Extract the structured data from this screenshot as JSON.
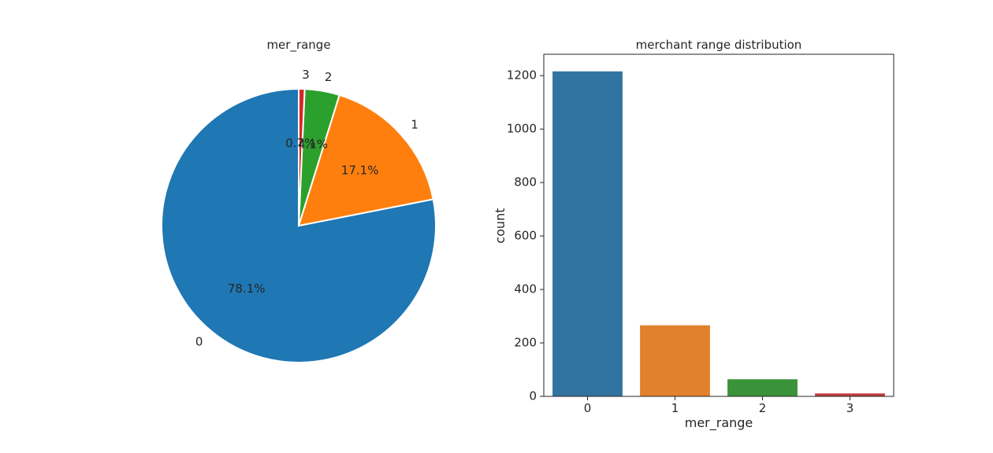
{
  "chart_data": [
    {
      "type": "pie",
      "title": "mer_range",
      "labels": [
        "0",
        "1",
        "2",
        "3"
      ],
      "values": [
        78.1,
        17.1,
        4.1,
        0.7
      ],
      "autopct": [
        "78.1%",
        "17.1%",
        "4.1%",
        "0.7%"
      ],
      "colors": [
        "#1f77b4",
        "#ff7f0e",
        "#2ca02c",
        "#d62728"
      ],
      "startangle": 90
    },
    {
      "type": "bar",
      "title": "merchant range distribution",
      "xlabel": "mer_range",
      "ylabel": "count",
      "categories": [
        "0",
        "1",
        "2",
        "3"
      ],
      "values": [
        1216,
        266,
        64,
        11
      ],
      "colors": [
        "#3274a1",
        "#e1812c",
        "#3a923a",
        "#c03d3e"
      ],
      "ylim": [
        0,
        1280
      ],
      "yticks": [
        0,
        200,
        400,
        600,
        800,
        1000,
        1200
      ]
    }
  ]
}
